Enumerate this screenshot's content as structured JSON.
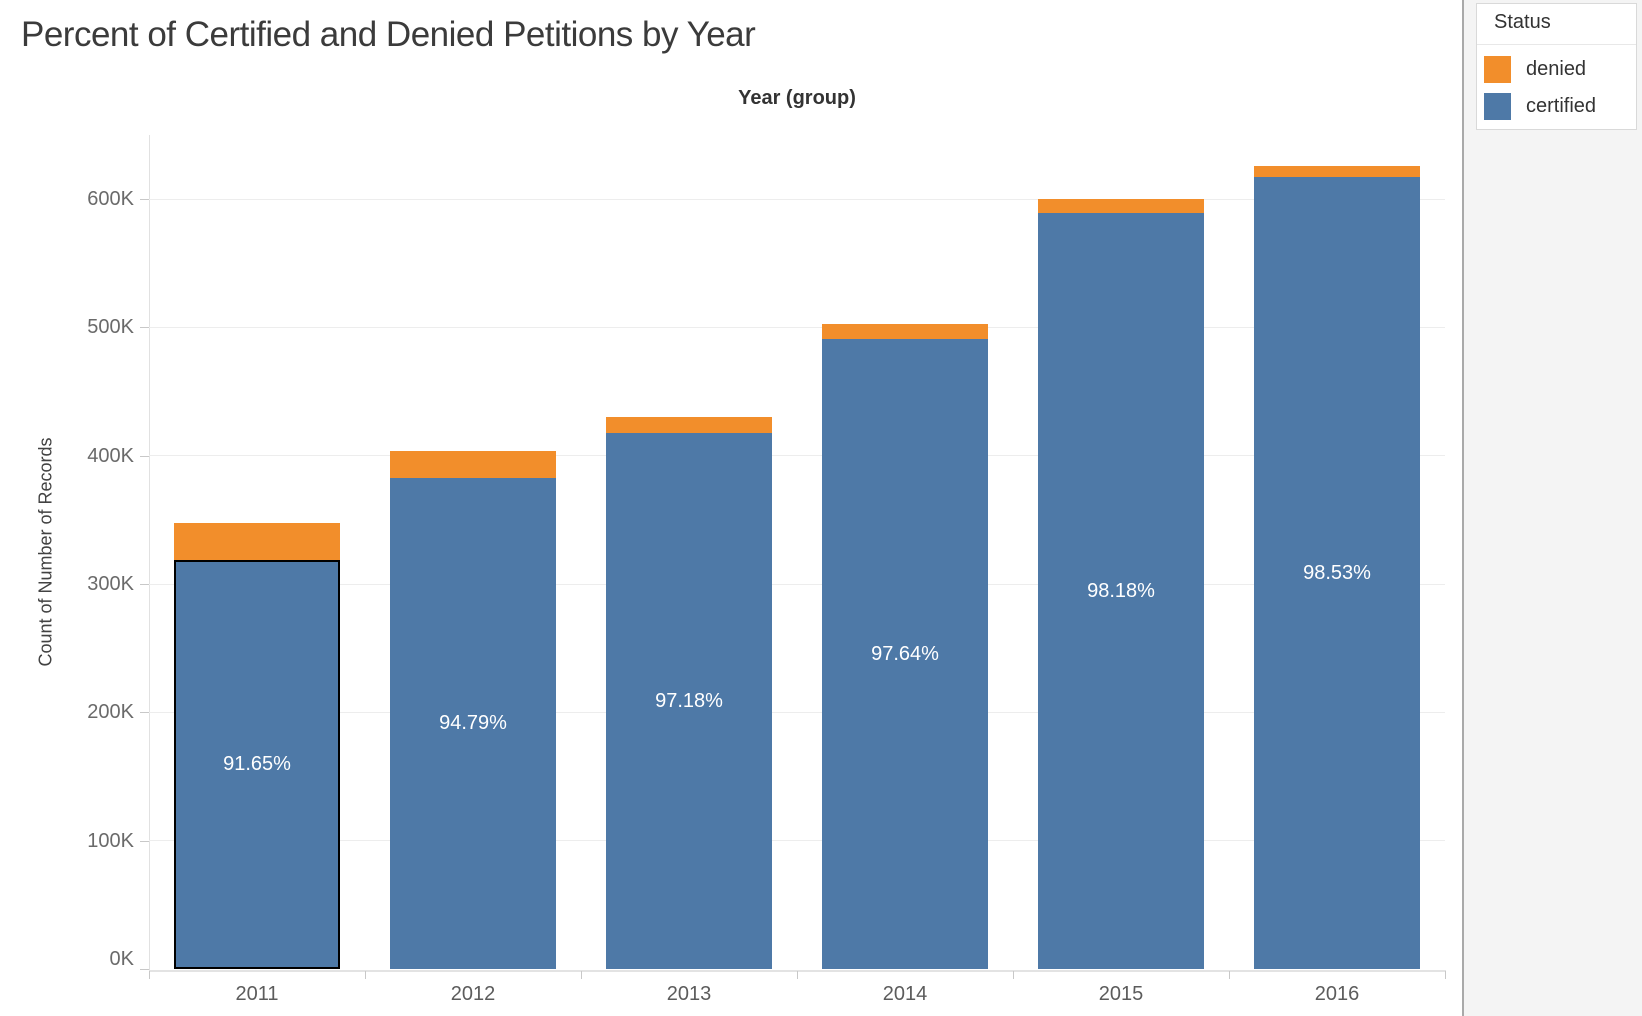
{
  "title": "Percent of Certified and Denied Petitions by Year",
  "chart_data": {
    "type": "bar",
    "stacked": true,
    "title": "Percent of Certified and Denied Petitions by Year",
    "column_header": "Year (group)",
    "xlabel": "Year (group)",
    "ylabel": "Count of Number of Records",
    "categories": [
      "2011",
      "2012",
      "2013",
      "2014",
      "2015",
      "2016"
    ],
    "series": [
      {
        "name": "certified",
        "color": "#4e79a7",
        "values_k": [
          319,
          383,
          418,
          491,
          589,
          617
        ]
      },
      {
        "name": "denied",
        "color": "#f28e2b",
        "values_k": [
          29,
          21,
          12,
          12,
          11,
          9
        ]
      }
    ],
    "stack_order": "certified bottom, denied top",
    "totals_k": [
      348,
      404,
      430,
      503,
      600,
      626
    ],
    "bar_labels": [
      "91.65%",
      "94.79%",
      "97.18%",
      "97.64%",
      "98.18%",
      "98.53%"
    ],
    "bar_label_series": "certified percent of total",
    "y_ticks": [
      "0K",
      "100K",
      "200K",
      "300K",
      "400K",
      "500K",
      "600K"
    ],
    "y_tick_values_k": [
      0,
      100,
      200,
      300,
      400,
      500,
      600
    ],
    "ylim_k": [
      0,
      650
    ],
    "grid": "horizontal",
    "legend_position": "top-right",
    "selection": {
      "category": "2011",
      "segment": "certified",
      "outline_color": "#000000"
    }
  },
  "legend": {
    "title": "Status",
    "items": [
      {
        "label": "denied",
        "color": "#f28e2b"
      },
      {
        "label": "certified",
        "color": "#4e79a7"
      }
    ]
  },
  "colors": {
    "certified": "#4e79a7",
    "denied": "#f28e2b",
    "bar_label_text": "#ffffff",
    "gridline": "#ededed",
    "axis_line": "#e1e1e1",
    "tick_mark": "#c8c8c8",
    "tick_label": "#6a6a6a",
    "title_text": "#3b3b3b",
    "panel_background": "#f4f4f4",
    "panel_divider": "#a9a9a9",
    "legend_border": "#d9d9d9"
  }
}
